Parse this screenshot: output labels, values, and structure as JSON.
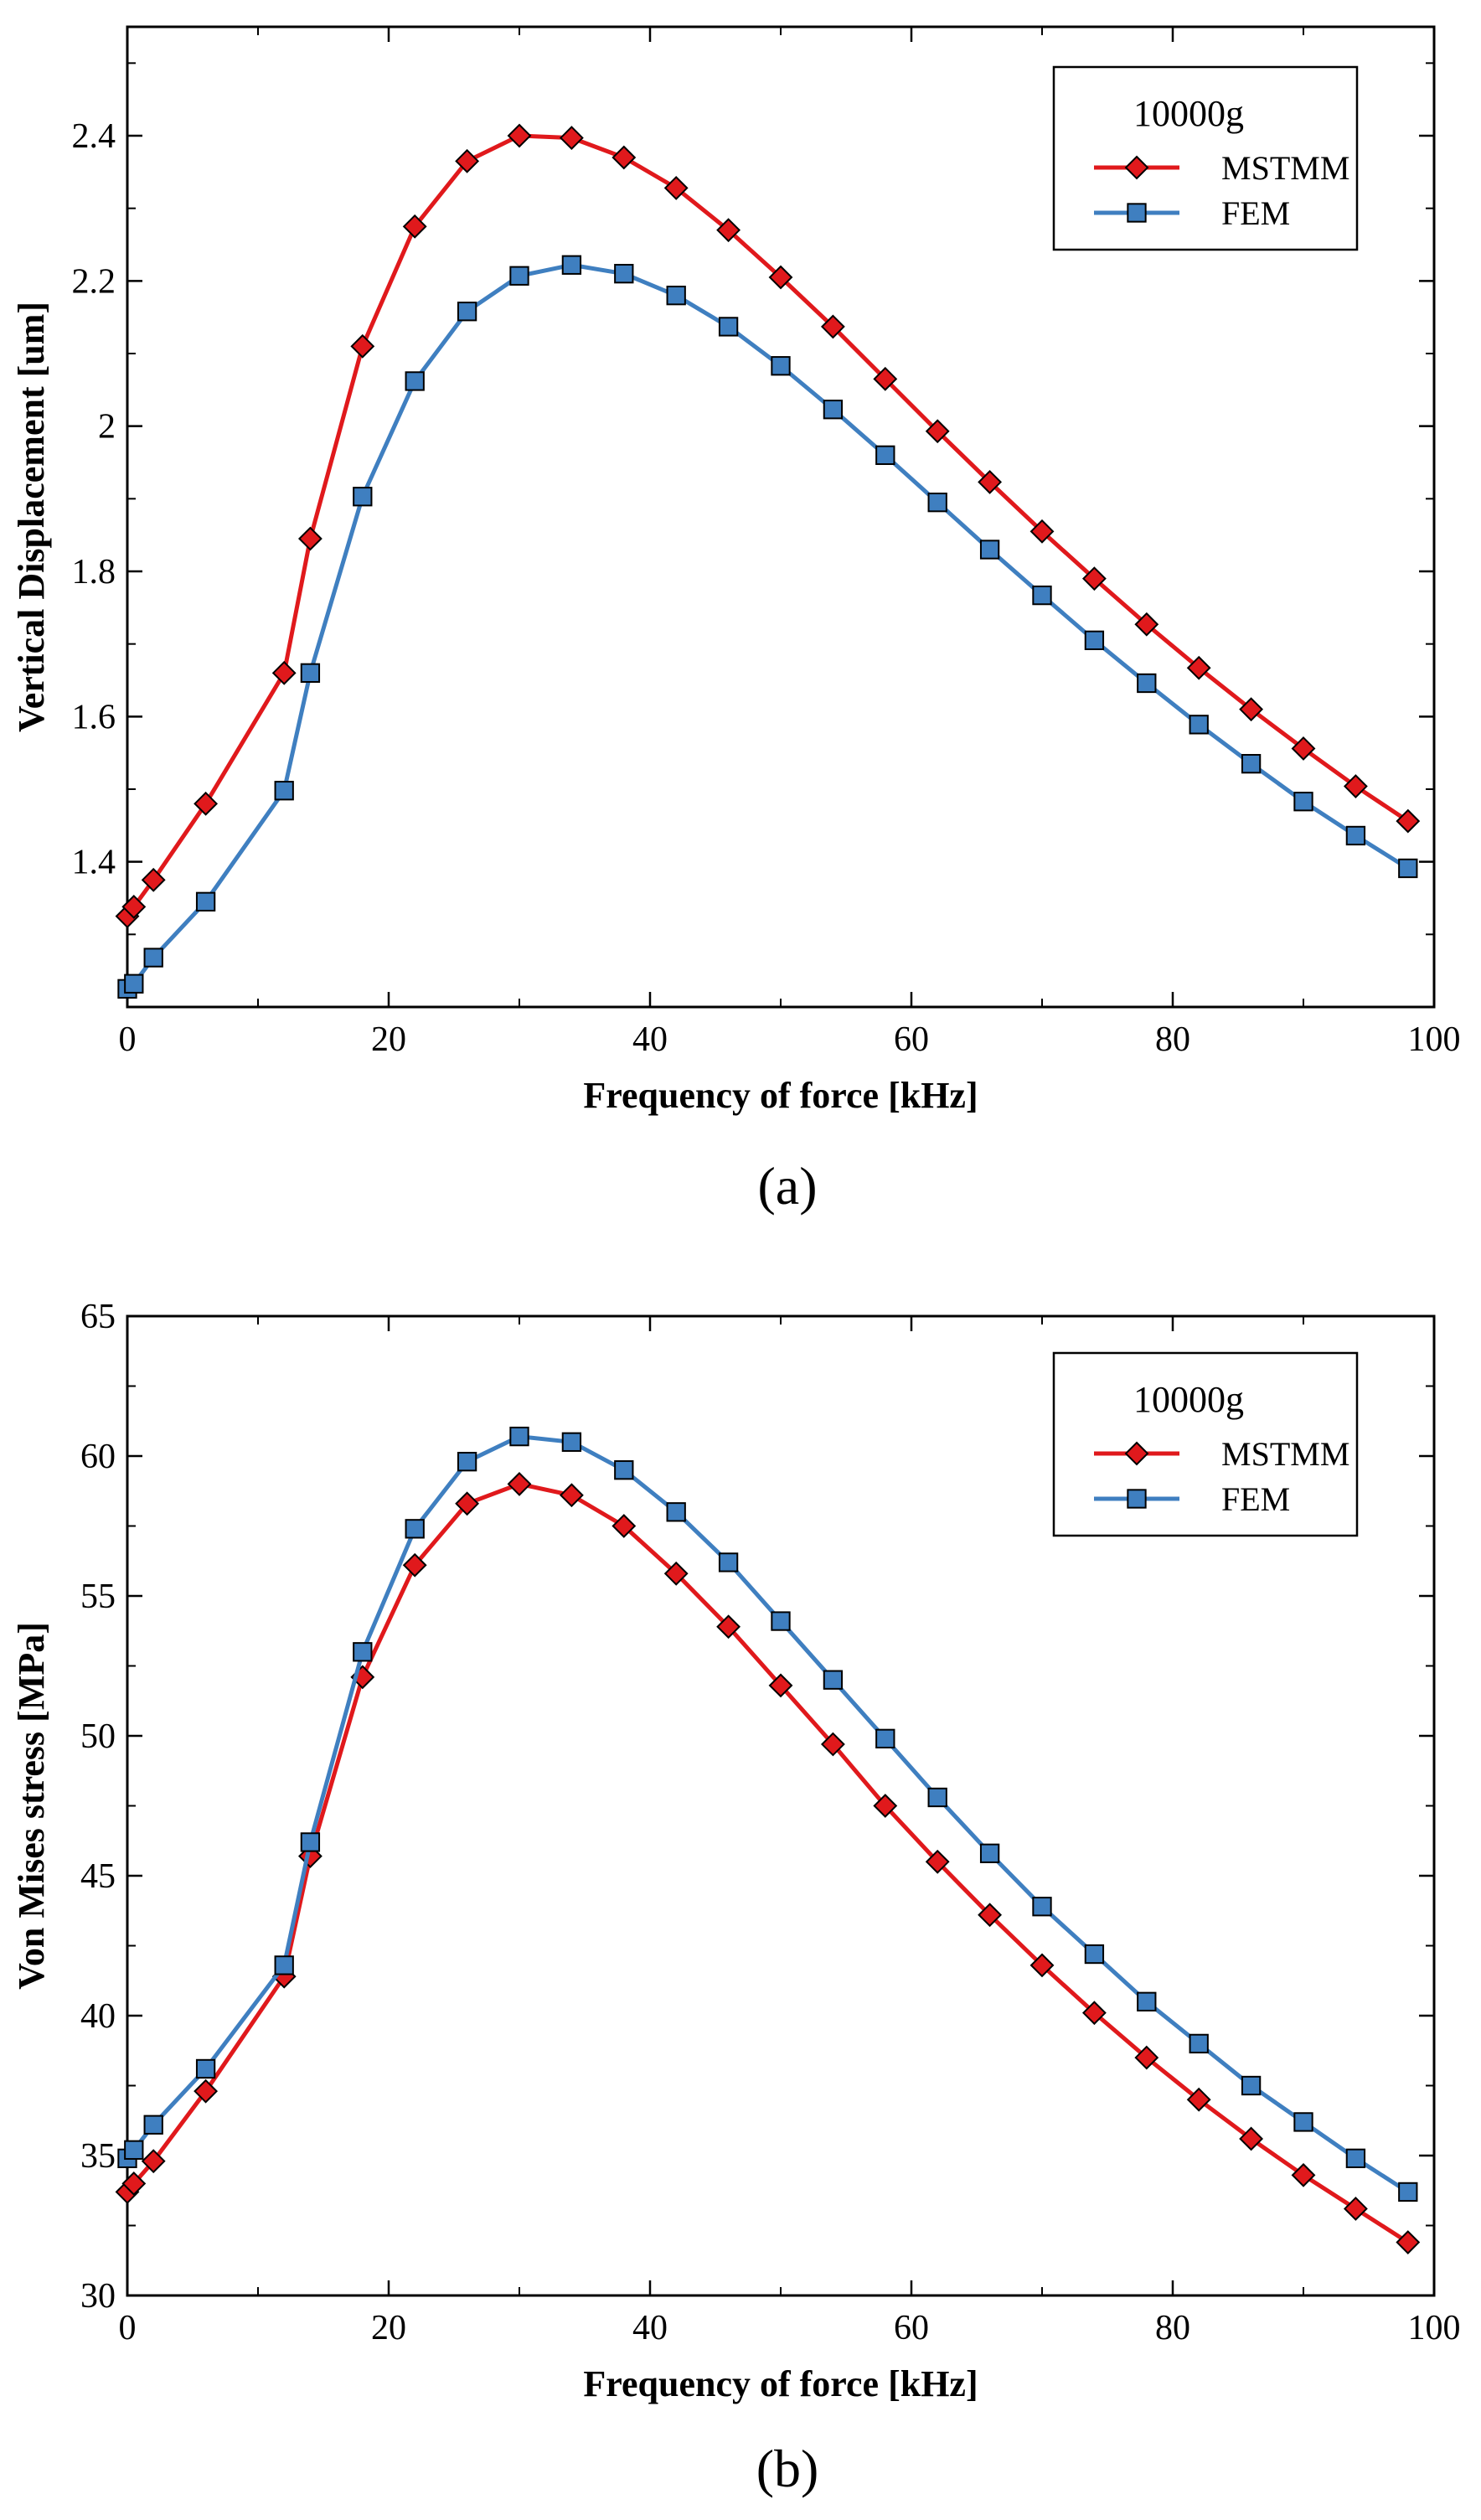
{
  "chart_data": [
    {
      "id": "a",
      "type": "line",
      "panel_label": "(a)",
      "xlabel": "Frequency of force [kHz]",
      "ylabel": "Vertical Displacement [um]",
      "xlim": [
        0,
        100
      ],
      "ylim": [
        1.2,
        2.55
      ],
      "xticks": [
        0,
        20,
        40,
        60,
        80,
        100
      ],
      "xtick_labels": [
        "0",
        "20",
        "40",
        "60",
        "80",
        "100"
      ],
      "yticks": [
        1.4,
        1.6,
        1.8,
        2.0,
        2.2,
        2.4
      ],
      "ytick_labels": [
        "1.4",
        "1.6",
        "1.8",
        "2",
        "2.2",
        "2.4"
      ],
      "legend": {
        "title": "10000g",
        "position": "top-right"
      },
      "series": [
        {
          "name": "MSTMM",
          "color": "#e0191c",
          "marker": "diamond",
          "x": [
            0,
            0.5,
            2,
            6,
            12,
            14,
            18,
            22,
            26,
            30,
            34,
            38,
            42,
            46,
            50,
            54,
            58,
            62,
            66,
            70,
            74,
            78,
            82,
            86,
            90,
            94,
            98
          ],
          "y": [
            1.325,
            1.338,
            1.375,
            1.48,
            1.66,
            1.845,
            2.11,
            2.275,
            2.365,
            2.4,
            2.397,
            2.37,
            2.328,
            2.27,
            2.205,
            2.137,
            2.065,
            1.993,
            1.923,
            1.855,
            1.79,
            1.727,
            1.667,
            1.61,
            1.556,
            1.504,
            1.456
          ]
        },
        {
          "name": "FEM",
          "color": "#3f7fc0",
          "marker": "square",
          "x": [
            0,
            0.5,
            2,
            6,
            12,
            14,
            18,
            22,
            26,
            30,
            34,
            38,
            42,
            46,
            50,
            54,
            58,
            62,
            66,
            70,
            74,
            78,
            82,
            86,
            90,
            94,
            98
          ],
          "y": [
            1.225,
            1.232,
            1.268,
            1.345,
            1.498,
            1.66,
            1.903,
            2.062,
            2.158,
            2.207,
            2.222,
            2.21,
            2.18,
            2.137,
            2.083,
            2.023,
            1.96,
            1.895,
            1.83,
            1.767,
            1.705,
            1.646,
            1.589,
            1.535,
            1.483,
            1.436,
            1.391
          ]
        }
      ]
    },
    {
      "id": "b",
      "type": "line",
      "panel_label": "(b)",
      "xlabel": "Frequency of force [kHz]",
      "ylabel": "Von Mises stress [MPa]",
      "xlim": [
        0,
        100
      ],
      "ylim": [
        30,
        65
      ],
      "xticks": [
        0,
        20,
        40,
        60,
        80,
        100
      ],
      "xtick_labels": [
        "0",
        "20",
        "40",
        "60",
        "80",
        "100"
      ],
      "yticks": [
        30,
        35,
        40,
        45,
        50,
        55,
        60,
        65
      ],
      "ytick_labels": [
        "30",
        "35",
        "40",
        "45",
        "50",
        "55",
        "60",
        "65"
      ],
      "legend": {
        "title": "10000g",
        "position": "top-right"
      },
      "series": [
        {
          "name": "MSTMM",
          "color": "#e0191c",
          "marker": "diamond",
          "x": [
            0,
            0.5,
            2,
            6,
            12,
            14,
            18,
            22,
            26,
            30,
            34,
            38,
            42,
            46,
            50,
            54,
            58,
            62,
            66,
            70,
            74,
            78,
            82,
            86,
            90,
            94,
            98
          ],
          "y": [
            33.7,
            34.0,
            34.8,
            37.3,
            41.4,
            45.7,
            52.1,
            56.1,
            58.3,
            59.0,
            58.6,
            57.5,
            55.8,
            53.9,
            51.8,
            49.7,
            47.5,
            45.5,
            43.6,
            41.8,
            40.1,
            38.5,
            37.0,
            35.6,
            34.3,
            33.1,
            31.9
          ]
        },
        {
          "name": "FEM",
          "color": "#3f7fc0",
          "marker": "square",
          "x": [
            0,
            0.5,
            2,
            6,
            12,
            14,
            18,
            22,
            26,
            30,
            34,
            38,
            42,
            46,
            50,
            54,
            58,
            62,
            66,
            70,
            74,
            78,
            82,
            86,
            90,
            94,
            98
          ],
          "y": [
            34.9,
            35.2,
            36.1,
            38.1,
            41.8,
            46.2,
            53.0,
            57.4,
            59.8,
            60.7,
            60.5,
            59.5,
            58.0,
            56.2,
            54.1,
            52.0,
            49.9,
            47.8,
            45.8,
            43.9,
            42.2,
            40.5,
            39.0,
            37.5,
            36.2,
            34.9,
            33.7
          ]
        }
      ]
    }
  ]
}
